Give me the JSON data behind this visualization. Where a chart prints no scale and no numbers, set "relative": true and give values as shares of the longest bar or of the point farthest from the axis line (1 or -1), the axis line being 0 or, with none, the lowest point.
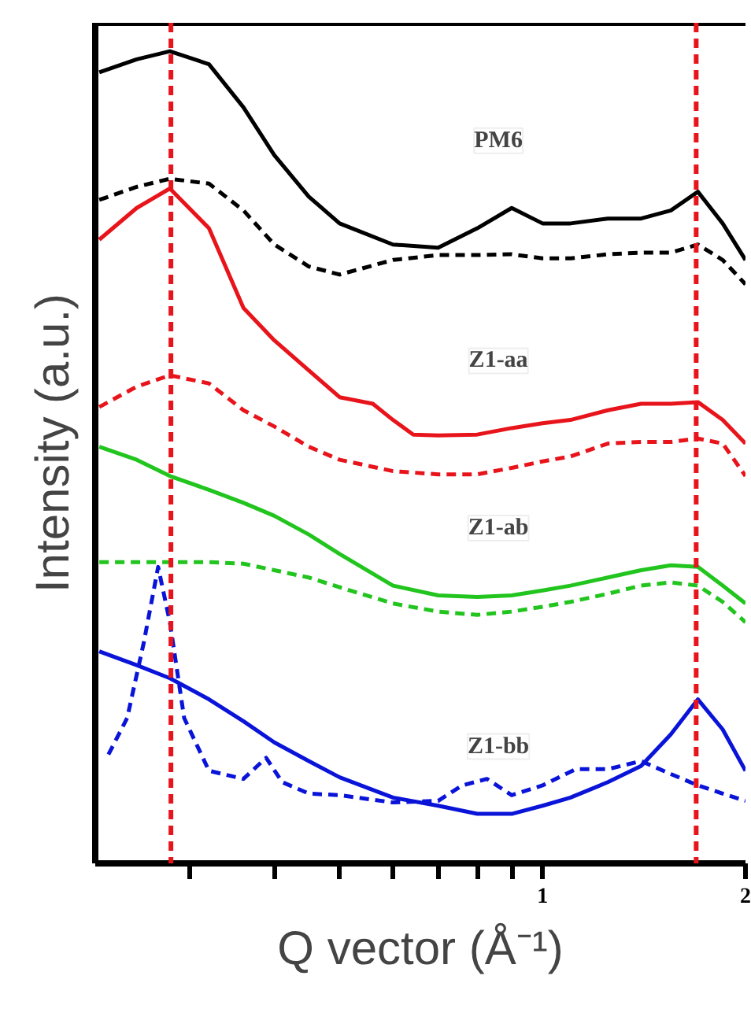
{
  "chart_data": {
    "type": "line",
    "relative": true,
    "xlabel": "Q vector (Å⁻¹)",
    "ylabel": "Intensity (a.u.)",
    "log": "x",
    "grid": false,
    "x": [
      0.22,
      0.25,
      0.28,
      0.32,
      0.36,
      0.4,
      0.45,
      0.5,
      0.6,
      0.7,
      0.8,
      0.9,
      1,
      1.1,
      1.25,
      1.4,
      1.55,
      1.7,
      1.85,
      2.0
    ],
    "xlim": [
      0.217,
      2.0
    ],
    "xticks": [
      {
        "value": 0.3,
        "label": null
      },
      {
        "value": 0.4,
        "label": null
      },
      {
        "value": 0.5,
        "label": null
      },
      {
        "value": 0.6,
        "label": null
      },
      {
        "value": 0.7,
        "label": null
      },
      {
        "value": 0.8,
        "label": null
      },
      {
        "value": 0.9,
        "label": null
      },
      1,
      2
    ],
    "tick_labels": "x",
    "series": [
      {
        "name": "PM6",
        "color": "#000000",
        "line_style": "solid",
        "values": [
          0.974,
          0.99,
          1.0,
          0.984,
          0.931,
          0.872,
          0.821,
          0.788,
          0.762,
          0.758,
          0.782,
          0.807,
          0.788,
          0.788,
          0.794,
          0.794,
          0.804,
          0.827,
          0.788,
          0.743
        ]
      },
      {
        "color": "#000000",
        "line_style": "dashed",
        "values": [
          0.817,
          0.833,
          0.843,
          0.837,
          0.804,
          0.762,
          0.735,
          0.725,
          0.743,
          0.749,
          0.749,
          0.75,
          0.745,
          0.745,
          0.75,
          0.752,
          0.752,
          0.762,
          0.743,
          0.713
        ]
      },
      {
        "name": "Z1-aa",
        "color": "#e8141b",
        "line_style": "solid",
        "x": [
          0.22,
          0.25,
          0.28,
          0.32,
          0.36,
          0.4,
          0.45,
          0.5,
          0.56,
          0.6,
          0.643,
          0.7,
          0.8,
          0.9,
          1,
          1.1,
          1.25,
          1.4,
          1.55,
          1.7,
          1.85,
          2.0
        ],
        "values": [
          0.768,
          0.807,
          0.831,
          0.782,
          0.684,
          0.644,
          0.607,
          0.574,
          0.566,
          0.546,
          0.528,
          0.527,
          0.528,
          0.536,
          0.542,
          0.546,
          0.558,
          0.566,
          0.566,
          0.568,
          0.546,
          0.517
        ]
      },
      {
        "color": "#e8141b",
        "line_style": "dashed",
        "values": [
          0.562,
          0.587,
          0.601,
          0.591,
          0.558,
          0.538,
          0.513,
          0.497,
          0.483,
          0.479,
          0.479,
          0.487,
          0.495,
          0.501,
          0.517,
          0.519,
          0.519,
          0.523,
          0.517,
          0.477
        ]
      },
      {
        "name": "Z1-ab",
        "color": "#22c41e",
        "line_style": "solid",
        "values": [
          0.513,
          0.497,
          0.477,
          0.46,
          0.444,
          0.428,
          0.405,
          0.381,
          0.342,
          0.33,
          0.328,
          0.33,
          0.336,
          0.342,
          0.352,
          0.361,
          0.367,
          0.365,
          0.342,
          0.32
        ]
      },
      {
        "color": "#22c41e",
        "line_style": "dashed",
        "values": [
          0.371,
          0.371,
          0.371,
          0.371,
          0.369,
          0.361,
          0.352,
          0.34,
          0.32,
          0.31,
          0.306,
          0.31,
          0.316,
          0.322,
          0.332,
          0.342,
          0.346,
          0.342,
          0.322,
          0.297
        ]
      },
      {
        "name": "Z1-bb",
        "color": "#0a14d8",
        "line_style": "solid",
        "values": [
          0.261,
          0.244,
          0.228,
          0.202,
          0.175,
          0.149,
          0.126,
          0.106,
          0.081,
          0.071,
          0.061,
          0.061,
          0.071,
          0.081,
          0.1,
          0.12,
          0.159,
          0.202,
          0.165,
          0.114
        ]
      },
      {
        "color": "#0a14d8",
        "line_style": "dashed",
        "x": [
          0.227,
          0.242,
          0.256,
          0.269,
          0.28,
          0.294,
          0.32,
          0.36,
          0.389,
          0.411,
          0.45,
          0.5,
          0.6,
          0.7,
          0.76,
          0.827,
          0.9,
          1,
          1.12,
          1.25,
          1.4,
          1.55,
          1.7,
          1.85,
          2.0
        ],
        "values": [
          0.134,
          0.179,
          0.271,
          0.365,
          0.297,
          0.179,
          0.114,
          0.104,
          0.13,
          0.1,
          0.086,
          0.084,
          0.075,
          0.077,
          0.096,
          0.104,
          0.084,
          0.096,
          0.116,
          0.116,
          0.126,
          0.11,
          0.096,
          0.086,
          0.077
        ]
      }
    ],
    "ref_lines": [
      {
        "axis": "x",
        "value": 0.281,
        "color": "#e8141b",
        "line_style": "dashed"
      },
      {
        "axis": "x",
        "value": 1.69,
        "color": "#e8141b",
        "line_style": "dashed"
      }
    ]
  }
}
